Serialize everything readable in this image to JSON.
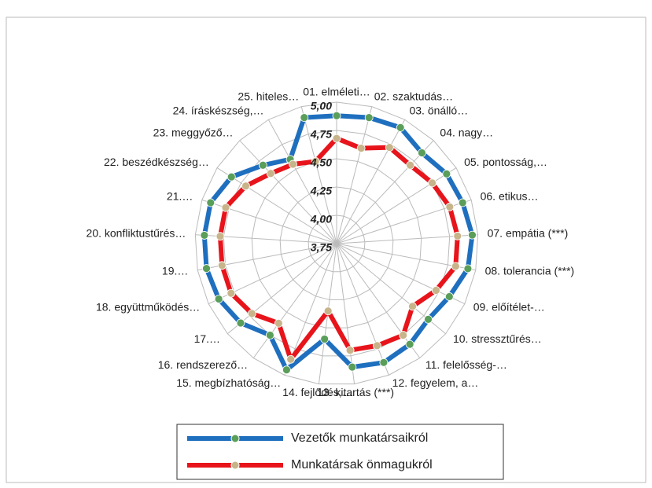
{
  "chart_data": {
    "type": "radar",
    "categories": [
      "01. elméleti…",
      "02. szaktudás…",
      "03. önálló…",
      "04. nagy…",
      "05. pontosság,…",
      "06. etikus…",
      "07. empátia (***)",
      "08. tolerancia (***)",
      "09. előítélet-…",
      "10. stressztűrés…",
      "11. felelősség-…",
      "12. fegyelem, a…",
      "13. kitartás (***)",
      "14. fejlődés,…",
      "15. megbízhatóság…",
      "16. rendszerező…",
      "17.…",
      "18. együttműködés…",
      "19.…",
      "20. konfliktustűrés…",
      "21.…",
      "22. beszédkészség…",
      "23. meggyőző…",
      "24. íráskészség,…",
      "25. hiteles…"
    ],
    "series": [
      {
        "name": "Vezetők munkatársaikról",
        "color": "#1f6fbf",
        "marker_color": "#5a9e5a",
        "values": [
          4.88,
          4.9,
          4.92,
          4.85,
          4.9,
          4.92,
          4.95,
          4.93,
          4.85,
          4.8,
          4.85,
          4.88,
          4.85,
          4.6,
          4.95,
          4.75,
          4.85,
          4.9,
          4.92,
          4.92,
          4.92,
          4.85,
          4.7,
          4.6,
          4.9
        ]
      },
      {
        "name": "Munkatársak önmagukról",
        "color": "#e8141b",
        "marker_color": "#c8b48a",
        "values": [
          4.68,
          4.62,
          4.72,
          4.7,
          4.75,
          4.8,
          4.82,
          4.82,
          4.72,
          4.62,
          4.75,
          4.72,
          4.7,
          4.35,
          4.85,
          4.62,
          4.72,
          4.78,
          4.78,
          4.78,
          4.78,
          4.7,
          4.6,
          4.55,
          4.5
        ]
      }
    ],
    "rlim": [
      3.75,
      5.0
    ],
    "rticks": [
      {
        "value": 3.75,
        "label": "3,75"
      },
      {
        "value": 4.0,
        "label": "4,00"
      },
      {
        "value": 4.25,
        "label": "4,25"
      },
      {
        "value": 4.5,
        "label": "4,50"
      },
      {
        "value": 4.75,
        "label": "4,75"
      },
      {
        "value": 5.0,
        "label": "5,00"
      }
    ],
    "grid": true,
    "legend": "bottom"
  }
}
